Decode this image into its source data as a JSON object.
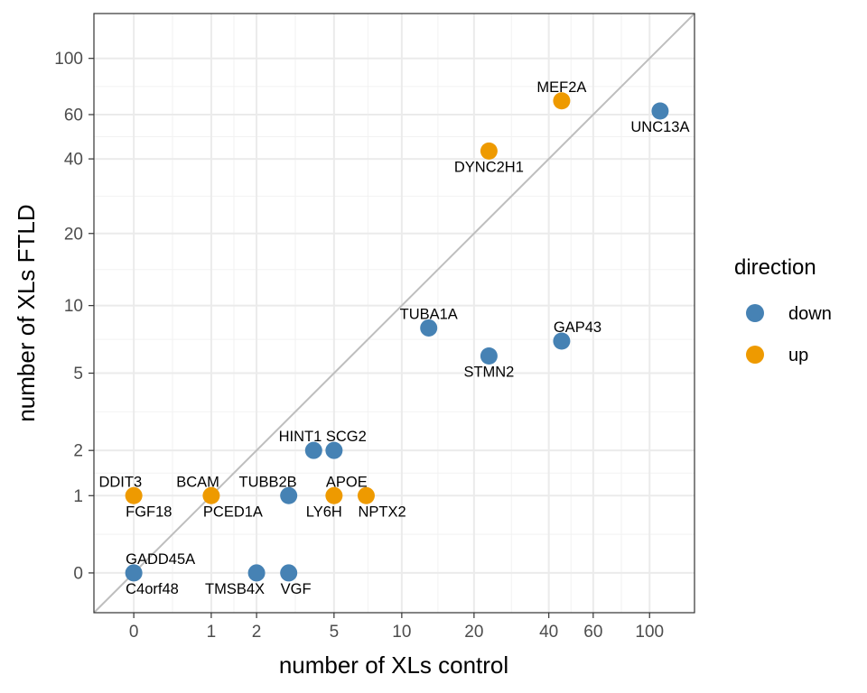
{
  "chart_data": {
    "type": "scatter",
    "xlabel": "number of XLs control",
    "ylabel": "number of XLs FTLD",
    "scale": "log1p",
    "x_ticks": [
      0,
      1,
      2,
      5,
      10,
      20,
      40,
      60,
      100
    ],
    "y_ticks": [
      0,
      1,
      2,
      5,
      10,
      20,
      40,
      60,
      100
    ],
    "xlim": [
      -0.3,
      150
    ],
    "ylim": [
      -0.3,
      150
    ],
    "grid": true,
    "reference_line": "y = x",
    "legend": {
      "title": "direction",
      "placement": "right",
      "entries": [
        {
          "key": "down",
          "label": "down",
          "color": "#4682B4"
        },
        {
          "key": "up",
          "label": "up",
          "color": "#EE9A00"
        }
      ]
    },
    "points": [
      {
        "label": "UNC13A",
        "x": 110,
        "y": 62,
        "direction": "down",
        "label_pos": "below"
      },
      {
        "label": "MEF2A",
        "x": 45,
        "y": 68,
        "direction": "up",
        "label_pos": "above"
      },
      {
        "label": "DYNC2H1",
        "x": 23,
        "y": 43,
        "direction": "up",
        "label_pos": "below"
      },
      {
        "label": "TUBA1A",
        "x": 13,
        "y": 8,
        "direction": "down",
        "label_pos": "above"
      },
      {
        "label": "GAP43",
        "x": 45,
        "y": 7,
        "direction": "down",
        "label_pos": "above-right"
      },
      {
        "label": "STMN2",
        "x": 23,
        "y": 6,
        "direction": "down",
        "label_pos": "below"
      },
      {
        "label": "HINT1",
        "x": 4,
        "y": 2,
        "direction": "down",
        "label_pos": "above-left"
      },
      {
        "label": "SCG2",
        "x": 5,
        "y": 2,
        "direction": "down",
        "label_pos": "above-right"
      },
      {
        "label": "TUBB2B",
        "x": 3,
        "y": 1,
        "direction": "down",
        "label_pos": "above-left"
      },
      {
        "label": "DDIT3",
        "x": 0,
        "y": 1,
        "direction": "up",
        "label_pos": "above-left"
      },
      {
        "label": "FGF18",
        "x": 0,
        "y": 1,
        "direction": "up",
        "label_pos": "below-right"
      },
      {
        "label": "BCAM",
        "x": 1,
        "y": 1,
        "direction": "up",
        "label_pos": "above-left"
      },
      {
        "label": "PCED1A",
        "x": 1,
        "y": 1,
        "direction": "up",
        "label_pos": "below-right"
      },
      {
        "label": "APOE",
        "x": 5,
        "y": 1,
        "direction": "up",
        "label_pos": "above-right"
      },
      {
        "label": "LY6H",
        "x": 5,
        "y": 1,
        "direction": "up",
        "label_pos": "below-left"
      },
      {
        "label": "NPTX2",
        "x": 7,
        "y": 1,
        "direction": "up",
        "label_pos": "below-right"
      },
      {
        "label": "GADD45A",
        "x": 0,
        "y": 0,
        "direction": "down",
        "label_pos": "above-right"
      },
      {
        "label": "C4orf48",
        "x": 0,
        "y": 0,
        "direction": "down",
        "label_pos": "below-right"
      },
      {
        "label": "TMSB4X",
        "x": 2,
        "y": 0,
        "direction": "down",
        "label_pos": "below-left"
      },
      {
        "label": "VGF",
        "x": 3,
        "y": 0,
        "direction": "down",
        "label_pos": "below-right"
      }
    ]
  }
}
